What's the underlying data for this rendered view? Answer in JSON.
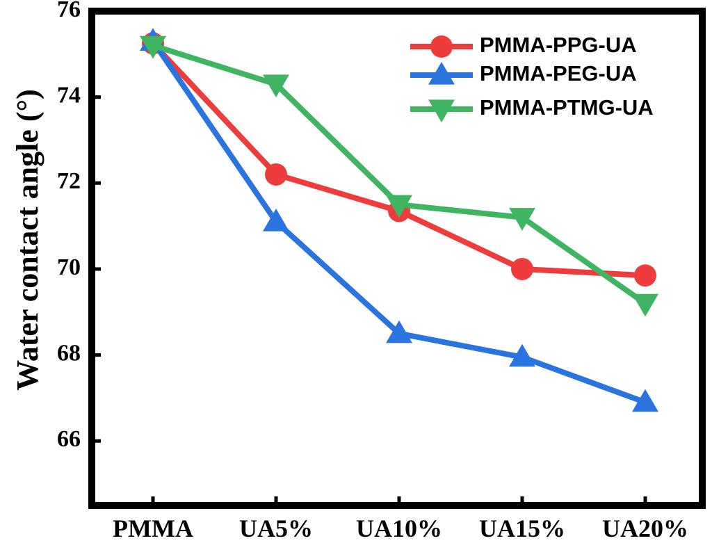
{
  "chart_data": {
    "type": "line",
    "title": "",
    "xlabel": "",
    "ylabel": "Water contact angle (°)",
    "categories": [
      "PMMA",
      "UA5%",
      "UA10%",
      "UA15%",
      "UA20%"
    ],
    "ylim": [
      64.5,
      76
    ],
    "yticks": [
      66,
      68,
      70,
      72,
      74,
      76
    ],
    "grid": false,
    "legend_position": "top-right",
    "series": [
      {
        "name": "PMMA-PPG-UA",
        "color": "#ee3b3b",
        "marker": "circle",
        "values": [
          75.25,
          72.2,
          71.35,
          70.0,
          69.85
        ]
      },
      {
        "name": "PMMA-PEG-UA",
        "color": "#2a74e0",
        "marker": "triangle-up",
        "values": [
          75.3,
          71.1,
          68.5,
          67.95,
          66.9
        ]
      },
      {
        "name": "PMMA-PTMG-UA",
        "color": "#3fb562",
        "marker": "triangle-down",
        "values": [
          75.2,
          74.3,
          71.5,
          71.2,
          69.2
        ]
      }
    ]
  }
}
